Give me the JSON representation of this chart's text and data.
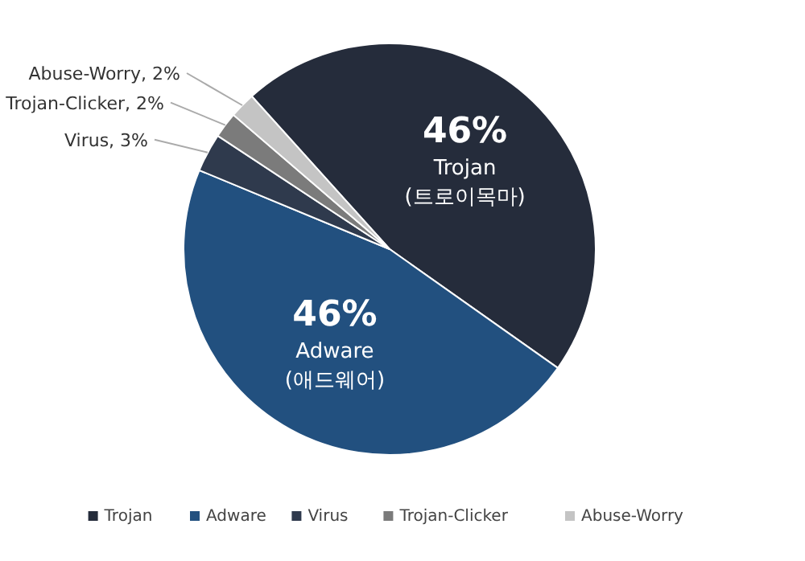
{
  "chart_data": {
    "type": "pie",
    "categories": [
      "Trojan",
      "Adware",
      "Virus",
      "Trojan-Clicker",
      "Abuse-Worry"
    ],
    "values": [
      46,
      46,
      3,
      2,
      2
    ],
    "colors": [
      "#252c3b",
      "#22507f",
      "#2f3a4d",
      "#7b7b7b",
      "#c4c4c4"
    ],
    "value_labels": [
      "46%",
      "46%",
      "Virus, 3%",
      "Trojan-Clicker, 2%",
      "Abuse-Worry, 2%"
    ],
    "legend": "bottom",
    "annotations": [
      "(트로이목마)",
      "(애드웨어)"
    ]
  }
}
